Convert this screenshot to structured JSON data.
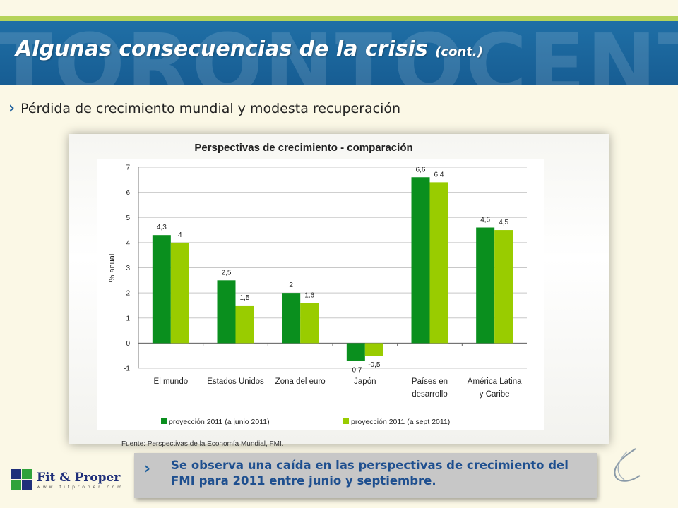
{
  "header": {
    "watermark": "TORONTOCENTRE",
    "title": "Algunas consecuencias de la crisis",
    "title_suffix": "(cont.)"
  },
  "bullet": {
    "text": "Pérdida de crecimiento mundial y modesta recuperación"
  },
  "source": "Fuente: Perspectivas de la Economía Mundial, FMI.",
  "callout": {
    "text": "Se observa una caída en las perspectivas de crecimiento del FMI para 2011 entre junio y septiembre."
  },
  "logo": {
    "name": "Fit & Proper",
    "url": "w w w . f i t p r o p e r . c o m"
  },
  "colors": {
    "title_band": "#1a66a0",
    "series1": "#0a8f1e",
    "series2": "#99cc00",
    "callout_text": "#1e4f8f"
  },
  "chart_data": {
    "type": "bar",
    "title": "Perspectivas de crecimiento - comparación",
    "ylabel": "% anual",
    "xlabel": "",
    "ylim": [
      -1,
      7
    ],
    "yticks": [
      "-1",
      "0",
      "1",
      "2",
      "3",
      "4",
      "5",
      "6",
      "7"
    ],
    "categories": [
      [
        "El mundo"
      ],
      [
        "Estados Unidos"
      ],
      [
        "Zona del euro"
      ],
      [
        "Japón"
      ],
      [
        "Países en",
        "desarrollo"
      ],
      [
        "América Latina",
        "y Caribe"
      ]
    ],
    "series": [
      {
        "name": "proyección 2011 (a junio 2011)",
        "color": "#0a8f1e",
        "values": [
          4.3,
          2.5,
          2,
          -0.7,
          6.6,
          4.6
        ],
        "labels": [
          "4,3",
          "2,5",
          "2",
          "-0,7",
          "6,6",
          "4,6"
        ]
      },
      {
        "name": "proyección 2011 (a sept 2011)",
        "color": "#99cc00",
        "values": [
          4,
          1.5,
          1.6,
          -0.5,
          6.4,
          4.5
        ],
        "labels": [
          "4",
          "1,5",
          "1,6",
          "-0,5",
          "6,4",
          "4,5"
        ]
      }
    ],
    "grid": true,
    "legend": "bottom"
  }
}
